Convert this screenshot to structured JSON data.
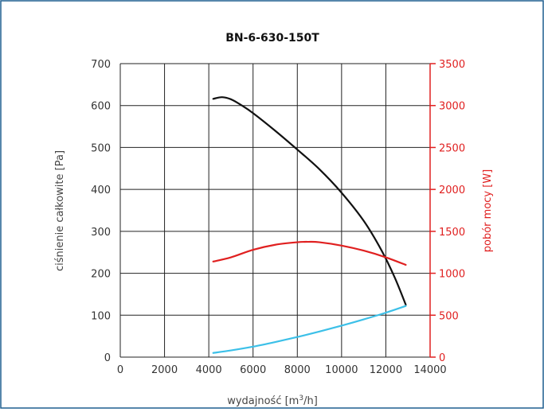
{
  "chart_data": {
    "type": "line",
    "title": "BN-6-630-150T",
    "xlabel": "wydajność [m3/h]",
    "xlabel_parts": {
      "base": "wydajność [m",
      "sup": "3",
      "tail": "/h]"
    },
    "ylabel_left": "ciśnienie całkowite [Pa]",
    "ylabel_right": "pobór mocy [W]",
    "xlim": [
      0,
      14000
    ],
    "ylim_left": [
      0,
      700
    ],
    "ylim_right": [
      0,
      3500
    ],
    "x_ticks": [
      "0",
      "2000",
      "4000",
      "6000",
      "8000",
      "10000",
      "12000",
      "14000"
    ],
    "y_left_ticks": [
      "0",
      "100",
      "200",
      "300",
      "400",
      "500",
      "600",
      "700"
    ],
    "y_right_ticks": [
      "0",
      "500",
      "1000",
      "1500",
      "2000",
      "2500",
      "3000",
      "3500"
    ],
    "grid": true,
    "colors": {
      "pressure": "#111111",
      "power": "#e02020",
      "system": "#3cc0e8",
      "border": "#1f5f8f"
    },
    "series": [
      {
        "axis": "left",
        "color": "#111111",
        "points": [
          [
            4200,
            616
          ],
          [
            4600,
            620
          ],
          [
            5000,
            615
          ],
          [
            5500,
            600
          ],
          [
            6000,
            582
          ],
          [
            7000,
            540
          ],
          [
            8000,
            495
          ],
          [
            9000,
            448
          ],
          [
            10000,
            392
          ],
          [
            11000,
            325
          ],
          [
            11800,
            255
          ],
          [
            12400,
            190
          ],
          [
            12900,
            125
          ]
        ]
      },
      {
        "axis": "right",
        "color": "#e02020",
        "points": [
          [
            4200,
            1140
          ],
          [
            5000,
            1190
          ],
          [
            6000,
            1280
          ],
          [
            7000,
            1340
          ],
          [
            8000,
            1370
          ],
          [
            8500,
            1375
          ],
          [
            9000,
            1370
          ],
          [
            10000,
            1330
          ],
          [
            11000,
            1270
          ],
          [
            12000,
            1190
          ],
          [
            12900,
            1100
          ]
        ]
      },
      {
        "axis": "left",
        "color": "#3cc0e8",
        "points": [
          [
            4200,
            10
          ],
          [
            5000,
            16
          ],
          [
            6000,
            25
          ],
          [
            7000,
            36
          ],
          [
            8000,
            48
          ],
          [
            9000,
            61
          ],
          [
            10000,
            75
          ],
          [
            11000,
            90
          ],
          [
            12000,
            106
          ],
          [
            12900,
            122
          ]
        ]
      }
    ]
  }
}
